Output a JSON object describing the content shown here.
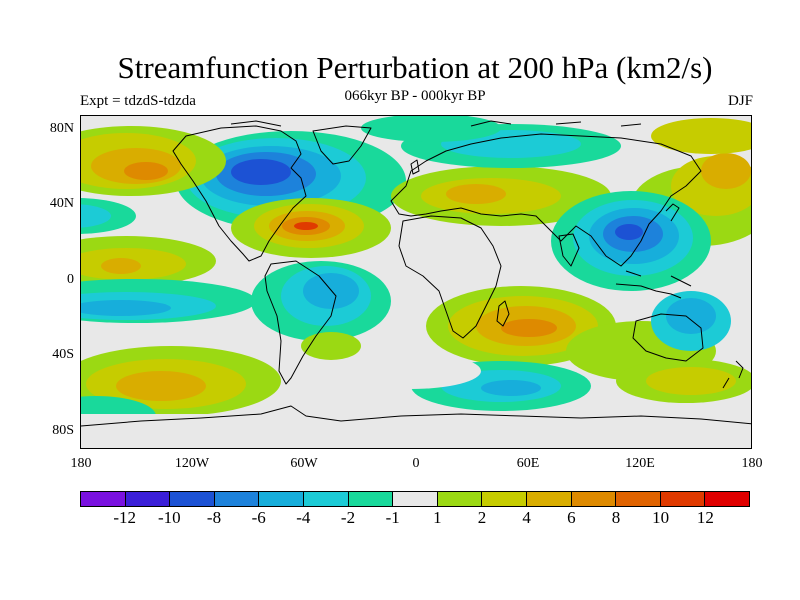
{
  "header": {
    "title": "Streamfunction Perturbation at 200 hPa (km2/s)",
    "subtitle": "066kyr BP - 000kyr BP",
    "left_label": "Expt = tdzdS-tdzda",
    "right_label": "DJF"
  },
  "map": {
    "y_ticks": [
      "80N",
      "40N",
      "0",
      "40S",
      "80S"
    ],
    "x_ticks": [
      "180",
      "120W",
      "60W",
      "0",
      "60E",
      "120E",
      "180"
    ]
  },
  "colorbar": {
    "labels": [
      "-12",
      "-10",
      "-8",
      "-6",
      "-4",
      "-2",
      "-1",
      "1",
      "2",
      "4",
      "6",
      "8",
      "10",
      "12"
    ],
    "colors": [
      "#7a11e0",
      "#3b1fd8",
      "#1c52d4",
      "#1d82db",
      "#17aedb",
      "#1ccbd6",
      "#19d99b",
      "#e8e8e8",
      "#9bd913",
      "#c6cc00",
      "#d9ad00",
      "#de8a00",
      "#e06300",
      "#e03a00",
      "#e00000"
    ]
  }
}
